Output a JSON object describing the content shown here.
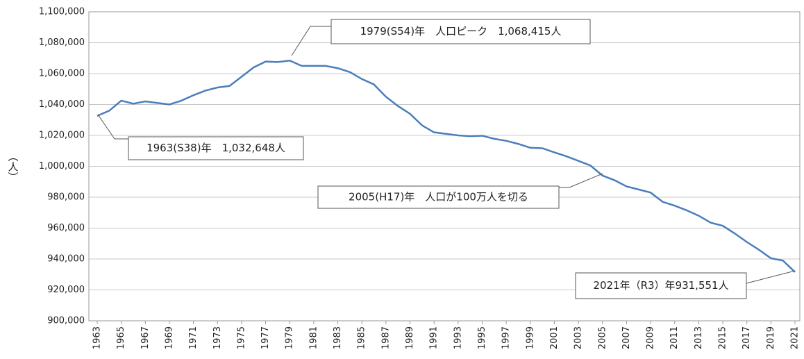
{
  "chart_data": {
    "type": "line",
    "ylabel": "（人）",
    "x": [
      1963,
      1964,
      1965,
      1966,
      1967,
      1968,
      1969,
      1970,
      1971,
      1972,
      1973,
      1974,
      1975,
      1976,
      1977,
      1978,
      1979,
      1980,
      1981,
      1982,
      1983,
      1984,
      1985,
      1986,
      1987,
      1988,
      1989,
      1990,
      1991,
      1992,
      1993,
      1994,
      1995,
      1996,
      1997,
      1998,
      1999,
      2000,
      2001,
      2002,
      2003,
      2004,
      2005,
      2006,
      2007,
      2008,
      2009,
      2010,
      2011,
      2012,
      2013,
      2014,
      2015,
      2016,
      2017,
      2018,
      2019,
      2020,
      2021
    ],
    "values": [
      1032648,
      1036000,
      1042500,
      1040500,
      1042000,
      1041000,
      1040000,
      1042500,
      1046000,
      1049000,
      1051000,
      1052000,
      1058000,
      1064000,
      1067800,
      1067500,
      1068415,
      1065000,
      1065000,
      1065000,
      1063500,
      1061000,
      1056500,
      1053000,
      1045000,
      1039000,
      1034000,
      1026500,
      1022000,
      1021000,
      1020000,
      1019500,
      1019800,
      1017800,
      1016500,
      1014500,
      1012000,
      1011700,
      1009000,
      1006500,
      1003500,
      1000500,
      994000,
      991000,
      987000,
      985000,
      983000,
      977000,
      974500,
      971500,
      968000,
      963500,
      961500,
      956500,
      951000,
      946000,
      940500,
      939000,
      931551
    ],
    "color": "#4a7ebb",
    "xlim": [
      1963,
      2021
    ],
    "xticks": [
      1963,
      1965,
      1967,
      1969,
      1971,
      1973,
      1975,
      1977,
      1979,
      1981,
      1983,
      1985,
      1987,
      1989,
      1991,
      1993,
      1995,
      1997,
      1999,
      2001,
      2003,
      2005,
      2007,
      2009,
      2011,
      2013,
      2015,
      2017,
      2019,
      2021
    ],
    "ylim": [
      900000,
      1100000
    ],
    "yticks": [
      {
        "value": 900000,
        "label": "900,000"
      },
      {
        "value": 920000,
        "label": "920,000"
      },
      {
        "value": 940000,
        "label": "940,000"
      },
      {
        "value": 960000,
        "label": "960,000"
      },
      {
        "value": 980000,
        "label": "980,000"
      },
      {
        "value": 1000000,
        "label": "1,000,000"
      },
      {
        "value": 1020000,
        "label": "1,020,000"
      },
      {
        "value": 1040000,
        "label": "1,040,000"
      },
      {
        "value": 1060000,
        "label": "1,060,000"
      },
      {
        "value": 1080000,
        "label": "1,080,000"
      },
      {
        "value": 1100000,
        "label": "1,100,000"
      }
    ],
    "grid": true,
    "annotations": [
      "1979(S54)年　人口ピーク　1,068,415人",
      "1963(S38)年　1,032,648人",
      "2005(H17)年　人口が100万人を切る",
      "2021年（R3）年931,551人"
    ]
  }
}
